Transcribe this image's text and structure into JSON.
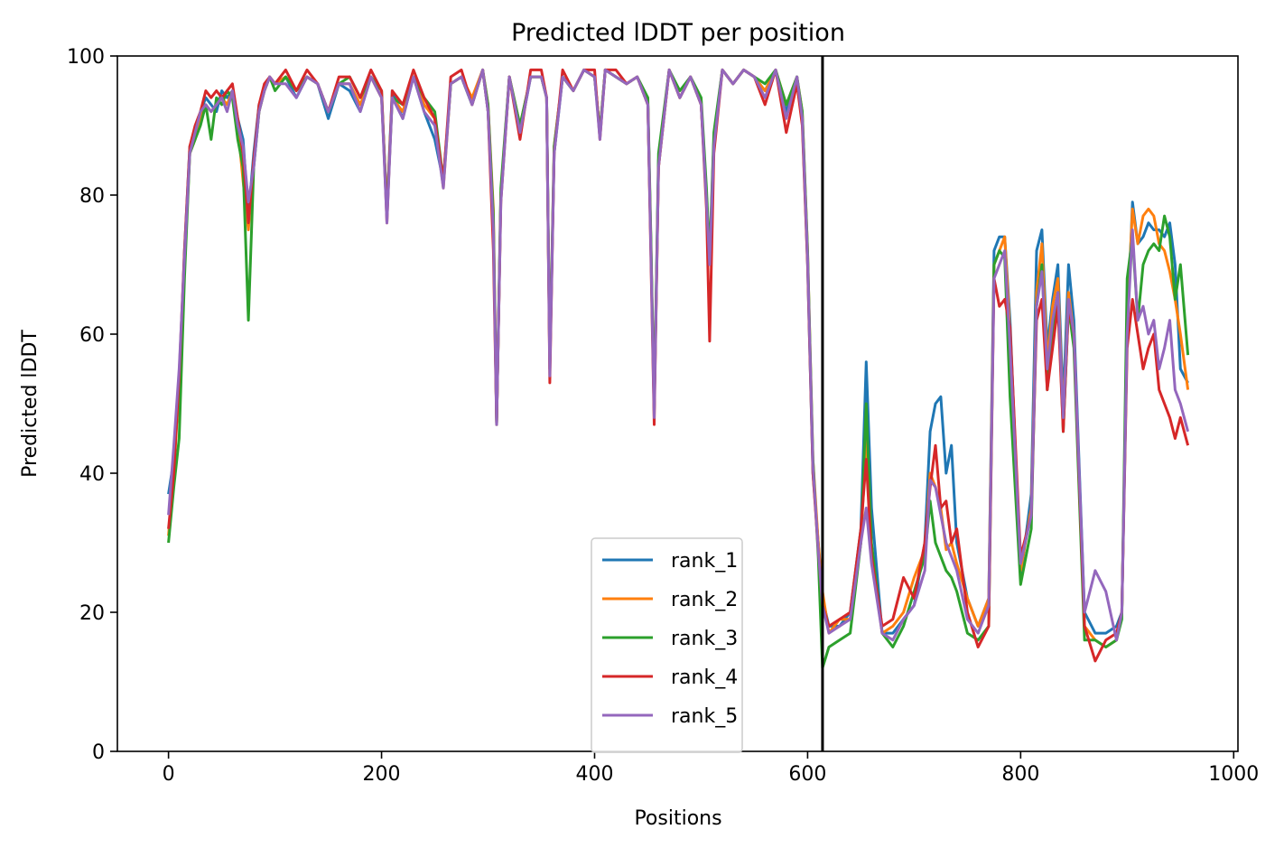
{
  "chart_data": {
    "type": "line",
    "title": "Predicted lDDT per position",
    "xlabel": "Positions",
    "ylabel": "Predicted lDDT",
    "xlim": [
      -48,
      1004
    ],
    "ylim": [
      0,
      100
    ],
    "xticks": [
      0,
      200,
      400,
      600,
      800,
      1000
    ],
    "yticks": [
      0,
      20,
      40,
      60,
      80,
      100
    ],
    "grid": false,
    "legend_position": "lower-center",
    "vline_x": 614,
    "colors": {
      "rank_1": "#1f77b4",
      "rank_2": "#ff7f0e",
      "rank_3": "#2ca02c",
      "rank_4": "#d62728",
      "rank_5": "#9467bd",
      "vline": "#000000"
    },
    "x": [
      0,
      5,
      10,
      15,
      20,
      25,
      30,
      35,
      40,
      45,
      50,
      55,
      60,
      65,
      70,
      75,
      80,
      85,
      90,
      95,
      100,
      110,
      120,
      130,
      140,
      150,
      160,
      170,
      180,
      190,
      200,
      205,
      210,
      220,
      230,
      240,
      250,
      258,
      265,
      275,
      285,
      295,
      300,
      305,
      308,
      312,
      320,
      330,
      340,
      350,
      355,
      358,
      362,
      370,
      380,
      390,
      400,
      405,
      410,
      420,
      430,
      440,
      450,
      453,
      456,
      460,
      470,
      480,
      490,
      500,
      505,
      508,
      512,
      520,
      530,
      540,
      550,
      560,
      570,
      580,
      590,
      595,
      600,
      605,
      610,
      614,
      620,
      630,
      640,
      650,
      655,
      660,
      670,
      680,
      690,
      700,
      710,
      715,
      720,
      725,
      730,
      735,
      740,
      750,
      760,
      770,
      775,
      780,
      785,
      790,
      800,
      810,
      815,
      820,
      825,
      830,
      835,
      840,
      845,
      850,
      860,
      870,
      880,
      890,
      895,
      900,
      905,
      910,
      915,
      920,
      925,
      930,
      935,
      940,
      945,
      950,
      957
    ],
    "series": [
      {
        "name": "rank_1",
        "values": [
          37,
          42,
          52,
          72,
          87,
          89,
          92,
          94,
          93,
          92,
          95,
          94,
          95,
          91,
          88,
          77,
          86,
          93,
          95,
          97,
          96,
          97,
          94,
          97,
          96,
          91,
          96,
          95,
          92,
          97,
          94,
          78,
          95,
          91,
          97,
          92,
          88,
          82,
          96,
          97,
          93,
          98,
          92,
          76,
          47,
          80,
          97,
          89,
          97,
          97,
          94,
          55,
          86,
          97,
          95,
          98,
          97,
          89,
          98,
          97,
          96,
          97,
          93,
          72,
          49,
          85,
          98,
          94,
          97,
          93,
          80,
          70,
          88,
          98,
          96,
          98,
          97,
          95,
          98,
          92,
          97,
          91,
          70,
          40,
          30,
          22,
          18,
          18,
          20,
          32,
          56,
          35,
          17,
          17,
          19,
          21,
          30,
          46,
          50,
          51,
          40,
          44,
          30,
          22,
          18,
          22,
          72,
          74,
          74,
          62,
          25,
          37,
          72,
          75,
          58,
          65,
          70,
          50,
          70,
          62,
          20,
          17,
          17,
          18,
          20,
          60,
          79,
          73,
          74,
          76,
          75,
          75,
          74,
          76,
          70,
          55,
          53
        ]
      },
      {
        "name": "rank_2",
        "values": [
          31,
          40,
          53,
          70,
          86,
          88,
          91,
          93,
          92,
          93,
          94,
          93,
          95,
          90,
          82,
          75,
          85,
          92,
          95,
          97,
          96,
          97,
          95,
          97,
          96,
          92,
          96,
          96,
          93,
          97,
          94,
          78,
          94,
          92,
          97,
          93,
          91,
          81,
          96,
          97,
          94,
          98,
          93,
          78,
          47,
          80,
          97,
          90,
          97,
          97,
          94,
          55,
          87,
          97,
          95,
          98,
          97,
          89,
          98,
          97,
          96,
          97,
          93,
          72,
          49,
          84,
          98,
          94,
          97,
          93,
          80,
          71,
          88,
          98,
          96,
          98,
          97,
          95,
          98,
          93,
          97,
          92,
          72,
          42,
          30,
          23,
          17,
          19,
          19,
          30,
          45,
          28,
          17,
          18,
          20,
          25,
          29,
          40,
          38,
          35,
          29,
          30,
          27,
          22,
          18,
          22,
          70,
          72,
          74,
          60,
          26,
          35,
          66,
          73,
          56,
          64,
          68,
          48,
          66,
          60,
          18,
          16,
          15,
          16,
          20,
          62,
          78,
          73,
          77,
          78,
          77,
          73,
          72,
          69,
          65,
          60,
          52
        ]
      },
      {
        "name": "rank_3",
        "values": [
          30,
          38,
          45,
          68,
          86,
          88,
          90,
          93,
          88,
          94,
          93,
          95,
          94,
          88,
          84,
          62,
          84,
          92,
          95,
          97,
          95,
          97,
          95,
          97,
          96,
          92,
          96,
          97,
          94,
          97,
          95,
          77,
          94,
          93,
          97,
          94,
          92,
          82,
          96,
          97,
          93,
          98,
          93,
          77,
          47,
          81,
          97,
          90,
          97,
          97,
          94,
          56,
          87,
          97,
          95,
          98,
          97,
          89,
          98,
          97,
          96,
          97,
          94,
          73,
          49,
          86,
          98,
          95,
          97,
          94,
          81,
          71,
          89,
          98,
          96,
          98,
          97,
          96,
          98,
          93,
          97,
          92,
          72,
          42,
          28,
          12,
          15,
          16,
          17,
          30,
          50,
          30,
          17,
          15,
          18,
          23,
          28,
          36,
          30,
          28,
          26,
          25,
          23,
          17,
          16,
          18,
          70,
          72,
          71,
          51,
          24,
          32,
          64,
          70,
          52,
          60,
          66,
          46,
          64,
          58,
          16,
          16,
          15,
          16,
          19,
          68,
          74,
          62,
          70,
          72,
          73,
          72,
          77,
          74,
          65,
          70,
          57
        ]
      },
      {
        "name": "rank_4",
        "values": [
          32,
          40,
          54,
          72,
          87,
          90,
          92,
          95,
          94,
          95,
          94,
          95,
          96,
          91,
          86,
          76,
          85,
          93,
          96,
          97,
          96,
          98,
          95,
          98,
          96,
          92,
          97,
          97,
          94,
          98,
          95,
          76,
          95,
          93,
          98,
          94,
          91,
          82,
          97,
          98,
          93,
          98,
          92,
          72,
          47,
          79,
          97,
          88,
          98,
          98,
          94,
          53,
          86,
          98,
          95,
          98,
          98,
          88,
          98,
          98,
          96,
          97,
          93,
          70,
          47,
          84,
          98,
          94,
          97,
          93,
          78,
          59,
          86,
          98,
          96,
          98,
          97,
          93,
          98,
          89,
          96,
          90,
          70,
          40,
          29,
          21,
          18,
          19,
          20,
          32,
          42,
          28,
          18,
          19,
          25,
          22,
          30,
          38,
          44,
          35,
          36,
          30,
          32,
          20,
          15,
          18,
          68,
          64,
          65,
          61,
          28,
          34,
          62,
          65,
          52,
          58,
          64,
          46,
          64,
          60,
          18,
          13,
          16,
          17,
          20,
          58,
          65,
          60,
          55,
          58,
          60,
          52,
          50,
          48,
          45,
          48,
          44
        ]
      },
      {
        "name": "rank_5",
        "values": [
          34,
          44,
          55,
          71,
          86,
          89,
          92,
          93,
          92,
          93,
          94,
          92,
          95,
          90,
          87,
          79,
          84,
          92,
          95,
          97,
          96,
          96,
          94,
          97,
          96,
          92,
          96,
          96,
          92,
          97,
          94,
          76,
          94,
          91,
          97,
          92,
          90,
          81,
          96,
          97,
          93,
          98,
          92,
          75,
          47,
          79,
          97,
          89,
          97,
          97,
          94,
          54,
          86,
          97,
          95,
          98,
          97,
          88,
          98,
          97,
          96,
          97,
          93,
          71,
          48,
          84,
          98,
          94,
          97,
          93,
          79,
          70,
          87,
          98,
          96,
          98,
          97,
          94,
          98,
          91,
          97,
          91,
          71,
          41,
          29,
          21,
          17,
          18,
          19,
          30,
          35,
          27,
          17,
          16,
          19,
          21,
          26,
          39,
          38,
          34,
          30,
          28,
          26,
          19,
          17,
          21,
          68,
          70,
          72,
          58,
          27,
          34,
          64,
          69,
          55,
          62,
          66,
          48,
          65,
          60,
          20,
          26,
          23,
          16,
          20,
          60,
          75,
          62,
          64,
          60,
          62,
          55,
          58,
          62,
          52,
          50,
          46
        ]
      }
    ]
  }
}
